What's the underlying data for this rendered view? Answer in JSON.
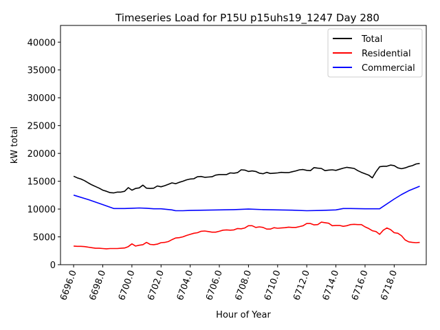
{
  "chart_data": {
    "type": "line",
    "title": "Timeseries Load for P15U p15uhs19_1247  Day 280",
    "xlabel": "Hour of Year",
    "ylabel": "kW total",
    "xlim": [
      6695.1,
      6720.2
    ],
    "ylim": [
      0,
      43000
    ],
    "xticks": [
      6696,
      6698,
      6700,
      6702,
      6704,
      6706,
      6708,
      6710,
      6712,
      6714,
      6716,
      6718
    ],
    "xtick_labels": [
      "6696.0",
      "6698.0",
      "6700.0",
      "6702.0",
      "6704.0",
      "6706.0",
      "6708.0",
      "6710.0",
      "6712.0",
      "6714.0",
      "6716.0",
      "6718.0"
    ],
    "yticks": [
      0,
      5000,
      10000,
      15000,
      20000,
      25000,
      30000,
      35000,
      40000
    ],
    "ytick_labels": [
      "0",
      "5000",
      "10000",
      "15000",
      "20000",
      "25000",
      "30000",
      "35000",
      "40000"
    ],
    "legend_position": "top-right",
    "series": [
      {
        "name": "Total",
        "color": "#000000",
        "x": [
          6696.0,
          6696.25,
          6696.5,
          6696.75,
          6697.0,
          6697.25,
          6697.5,
          6697.75,
          6698.0,
          6698.25,
          6698.5,
          6698.75,
          6699.0,
          6699.25,
          6699.5,
          6699.75,
          6700.0,
          6700.25,
          6700.5,
          6700.75,
          6701.0,
          6701.25,
          6701.5,
          6701.75,
          6702.0,
          6702.25,
          6702.5,
          6702.75,
          6703.0,
          6703.25,
          6703.5,
          6703.75,
          6704.0,
          6704.25,
          6704.5,
          6704.75,
          6705.0,
          6705.25,
          6705.5,
          6705.75,
          6706.0,
          6706.25,
          6706.5,
          6706.75,
          6707.0,
          6707.25,
          6707.5,
          6707.75,
          6708.0,
          6708.25,
          6708.5,
          6708.75,
          6709.0,
          6709.25,
          6709.5,
          6709.75,
          6710.0,
          6710.25,
          6710.5,
          6710.75,
          6711.0,
          6711.25,
          6711.5,
          6711.75,
          6712.0,
          6712.25,
          6712.5,
          6712.75,
          6713.0,
          6713.25,
          6713.5,
          6713.75,
          6714.0,
          6714.25,
          6714.5,
          6714.75,
          6715.0,
          6715.25,
          6715.5,
          6715.75,
          6716.0,
          6716.25,
          6716.5,
          6716.75,
          6717.0,
          6717.25,
          6717.5,
          6717.75,
          6718.0,
          6718.25,
          6718.5,
          6718.75,
          6719.0,
          6719.25,
          6719.5,
          6719.75
        ],
        "y": [
          15900,
          15600,
          15400,
          15100,
          14700,
          14350,
          14050,
          13750,
          13400,
          13200,
          12950,
          12900,
          13050,
          13050,
          13200,
          13850,
          13400,
          13700,
          13800,
          14300,
          13750,
          13700,
          13750,
          14150,
          14000,
          14200,
          14450,
          14700,
          14550,
          14800,
          15000,
          15250,
          15400,
          15450,
          15800,
          15850,
          15700,
          15750,
          15800,
          16100,
          16200,
          16200,
          16200,
          16500,
          16450,
          16550,
          17050,
          17000,
          16750,
          16850,
          16750,
          16450,
          16350,
          16600,
          16400,
          16450,
          16500,
          16600,
          16550,
          16550,
          16700,
          16850,
          17050,
          17100,
          16950,
          16900,
          17450,
          17350,
          17300,
          16900,
          17000,
          17050,
          16950,
          17150,
          17350,
          17500,
          17400,
          17300,
          16900,
          16600,
          16350,
          16100,
          15600,
          16700,
          17600,
          17700,
          17700,
          17900,
          17800,
          17400,
          17250,
          17400,
          17650,
          17800,
          18100,
          18200
        ]
      },
      {
        "name": "Residential",
        "color": "#ff0000",
        "x": [
          6696.0,
          6696.25,
          6696.5,
          6696.75,
          6697.0,
          6697.25,
          6697.5,
          6697.75,
          6698.0,
          6698.25,
          6698.5,
          6698.75,
          6699.0,
          6699.25,
          6699.5,
          6699.75,
          6700.0,
          6700.25,
          6700.5,
          6700.75,
          6701.0,
          6701.25,
          6701.5,
          6701.75,
          6702.0,
          6702.25,
          6702.5,
          6702.75,
          6703.0,
          6703.25,
          6703.5,
          6703.75,
          6704.0,
          6704.25,
          6704.5,
          6704.75,
          6705.0,
          6705.25,
          6705.5,
          6705.75,
          6706.0,
          6706.25,
          6706.5,
          6706.75,
          6707.0,
          6707.25,
          6707.5,
          6707.75,
          6708.0,
          6708.25,
          6708.5,
          6708.75,
          6709.0,
          6709.25,
          6709.5,
          6709.75,
          6710.0,
          6710.25,
          6710.5,
          6710.75,
          6711.0,
          6711.25,
          6711.5,
          6711.75,
          6712.0,
          6712.25,
          6712.5,
          6712.75,
          6713.0,
          6713.25,
          6713.5,
          6713.75,
          6714.0,
          6714.25,
          6714.5,
          6714.75,
          6715.0,
          6715.25,
          6715.5,
          6715.75,
          6716.0,
          6716.25,
          6716.5,
          6716.75,
          6717.0,
          6717.25,
          6717.5,
          6717.75,
          6718.0,
          6718.25,
          6718.5,
          6718.75,
          6719.0,
          6719.25,
          6719.5,
          6719.75
        ],
        "y": [
          3350,
          3300,
          3300,
          3250,
          3150,
          3050,
          2950,
          2950,
          2900,
          2850,
          2900,
          2900,
          2900,
          2950,
          3000,
          3250,
          3750,
          3350,
          3500,
          3600,
          4000,
          3650,
          3600,
          3700,
          3950,
          4000,
          4150,
          4500,
          4800,
          4850,
          5000,
          5250,
          5450,
          5650,
          5750,
          6000,
          6050,
          5950,
          5850,
          5850,
          6000,
          6200,
          6250,
          6200,
          6250,
          6500,
          6450,
          6600,
          7000,
          7000,
          6700,
          6800,
          6700,
          6400,
          6400,
          6650,
          6550,
          6600,
          6650,
          6750,
          6700,
          6700,
          6850,
          7000,
          7400,
          7400,
          7150,
          7200,
          7650,
          7550,
          7450,
          7000,
          7050,
          7050,
          6900,
          7000,
          7200,
          7250,
          7200,
          7200,
          6800,
          6500,
          6100,
          5950,
          5450,
          6200,
          6600,
          6300,
          5750,
          5650,
          5200,
          4450,
          4100,
          4000,
          3950,
          4000
        ]
      },
      {
        "name": "Commercial",
        "color": "#0000ff",
        "x": [
          6696.0,
          6697.0,
          6698.0,
          6698.75,
          6699.0,
          6699.5,
          6700.0,
          6700.5,
          6701.0,
          6701.5,
          6702.0,
          6702.75,
          6703.0,
          6703.5,
          6704.0,
          6705.0,
          6706.0,
          6707.0,
          6708.0,
          6709.0,
          6710.0,
          6711.0,
          6712.0,
          6713.0,
          6713.5,
          6714.0,
          6714.5,
          6715.0,
          6716.0,
          6717.0,
          6718.0,
          6718.5,
          6719.0,
          6719.75
        ],
        "y": [
          12500,
          11700,
          10800,
          10100,
          10100,
          10100,
          10150,
          10200,
          10150,
          10050,
          10050,
          9850,
          9700,
          9700,
          9750,
          9800,
          9850,
          9900,
          10000,
          9900,
          9850,
          9800,
          9700,
          9750,
          9800,
          9850,
          10100,
          10100,
          10050,
          10050,
          11800,
          12600,
          13300,
          14100
        ]
      }
    ]
  }
}
